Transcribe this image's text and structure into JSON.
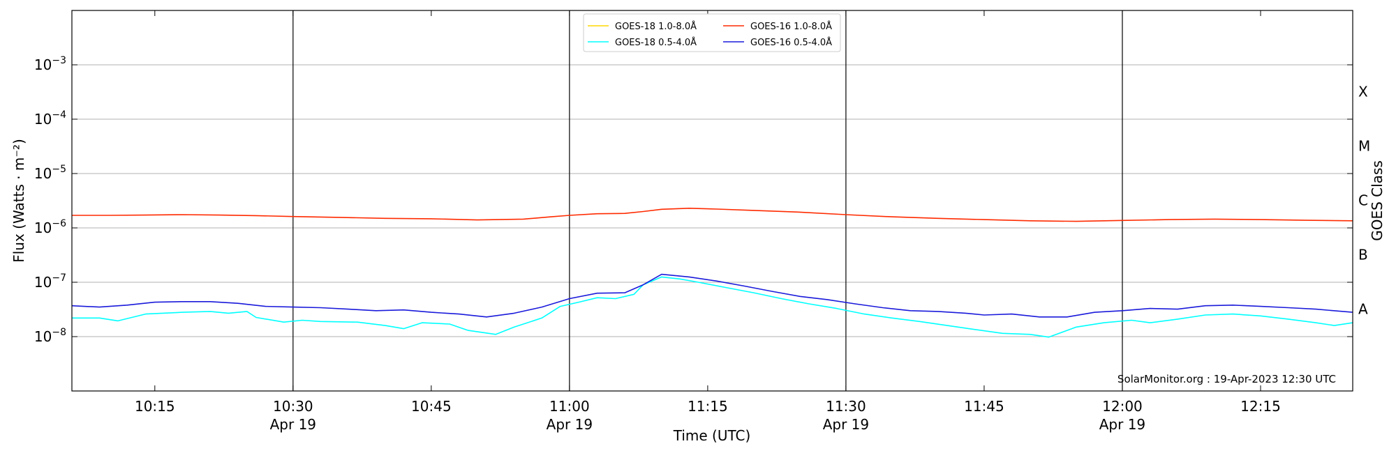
{
  "chart_data": {
    "type": "line",
    "ylabel": "Flux (Watts · m⁻²)",
    "y2label": "GOES Class",
    "xlabel": "Time (UTC)",
    "yscale": "log",
    "xlim": [
      "10:06",
      "12:25"
    ],
    "ylim": [
      1e-09,
      0.01
    ],
    "grid": "horizontal at each decade",
    "legend_location": "top-center",
    "watermark": "SolarMonitor.org : 19-Apr-2023 12:30 UTC",
    "x_ticks": [
      {
        "time": "10:15",
        "label": "10:15",
        "sublabel": ""
      },
      {
        "time": "10:30",
        "label": "10:30",
        "sublabel": "Apr 19"
      },
      {
        "time": "10:45",
        "label": "10:45",
        "sublabel": ""
      },
      {
        "time": "11:00",
        "label": "11:00",
        "sublabel": "Apr 19"
      },
      {
        "time": "11:15",
        "label": "11:15",
        "sublabel": ""
      },
      {
        "time": "11:30",
        "label": "11:30",
        "sublabel": "Apr 19"
      },
      {
        "time": "11:45",
        "label": "11:45",
        "sublabel": ""
      },
      {
        "time": "12:00",
        "label": "12:00",
        "sublabel": "Apr 19"
      },
      {
        "time": "12:15",
        "label": "12:15",
        "sublabel": ""
      }
    ],
    "vlines": [
      "10:30",
      "11:00",
      "11:30",
      "12:00"
    ],
    "y_ticks": [
      {
        "exp": -3,
        "base": "10",
        "sup": "−3"
      },
      {
        "exp": -4,
        "base": "10",
        "sup": "−4"
      },
      {
        "exp": -5,
        "base": "10",
        "sup": "−5"
      },
      {
        "exp": -6,
        "base": "10",
        "sup": "−6"
      },
      {
        "exp": -7,
        "base": "10",
        "sup": "−7"
      },
      {
        "exp": -8,
        "base": "10",
        "sup": "−8"
      }
    ],
    "goes_classes": [
      {
        "label": "X",
        "value": 0.0001
      },
      {
        "label": "M",
        "value": 1e-05
      },
      {
        "label": "C",
        "value": 1e-06
      },
      {
        "label": "B",
        "value": 1e-07
      },
      {
        "label": "A",
        "value": 1e-08
      }
    ],
    "series": [
      {
        "name": "GOES-18 1.0-8.0Å",
        "color": "#ffd700",
        "values": []
      },
      {
        "name": "GOES-18 0.5-4.0Å",
        "color": "#00ffff",
        "points": [
          [
            "10:06",
            2.2e-08
          ],
          [
            "10:09",
            2.2e-08
          ],
          [
            "10:11",
            1.95e-08
          ],
          [
            "10:14",
            2.6e-08
          ],
          [
            "10:18",
            2.8e-08
          ],
          [
            "10:21",
            2.9e-08
          ],
          [
            "10:23",
            2.7e-08
          ],
          [
            "10:25",
            2.9e-08
          ],
          [
            "10:26",
            2.25e-08
          ],
          [
            "10:29",
            1.85e-08
          ],
          [
            "10:31",
            2e-08
          ],
          [
            "10:33",
            1.9e-08
          ],
          [
            "10:37",
            1.85e-08
          ],
          [
            "10:40",
            1.6e-08
          ],
          [
            "10:42",
            1.4e-08
          ],
          [
            "10:44",
            1.8e-08
          ],
          [
            "10:47",
            1.7e-08
          ],
          [
            "10:49",
            1.3e-08
          ],
          [
            "10:52",
            1.1e-08
          ],
          [
            "10:54",
            1.5e-08
          ],
          [
            "10:57",
            2.2e-08
          ],
          [
            "10:59",
            3.6e-08
          ],
          [
            "11:01",
            4.3e-08
          ],
          [
            "11:03",
            5.2e-08
          ],
          [
            "11:05",
            5e-08
          ],
          [
            "11:07",
            6e-08
          ],
          [
            "11:08",
            9e-08
          ],
          [
            "11:10",
            1.25e-07
          ],
          [
            "11:12",
            1.15e-07
          ],
          [
            "11:14",
            1e-07
          ],
          [
            "11:17",
            8e-08
          ],
          [
            "11:20",
            6.4e-08
          ],
          [
            "11:23",
            5e-08
          ],
          [
            "11:26",
            4e-08
          ],
          [
            "11:29",
            3.3e-08
          ],
          [
            "11:32",
            2.6e-08
          ],
          [
            "11:35",
            2.2e-08
          ],
          [
            "11:38",
            1.9e-08
          ],
          [
            "11:41",
            1.6e-08
          ],
          [
            "11:44",
            1.35e-08
          ],
          [
            "11:47",
            1.15e-08
          ],
          [
            "11:50",
            1.1e-08
          ],
          [
            "11:52",
            9.8e-09
          ],
          [
            "11:55",
            1.5e-08
          ],
          [
            "11:58",
            1.8e-08
          ],
          [
            "12:01",
            2e-08
          ],
          [
            "12:03",
            1.8e-08
          ],
          [
            "12:06",
            2.1e-08
          ],
          [
            "12:09",
            2.5e-08
          ],
          [
            "12:12",
            2.6e-08
          ],
          [
            "12:15",
            2.4e-08
          ],
          [
            "12:18",
            2.1e-08
          ],
          [
            "12:21",
            1.8e-08
          ],
          [
            "12:23",
            1.6e-08
          ],
          [
            "12:25",
            1.8e-08
          ]
        ]
      },
      {
        "name": "GOES-16 1.0-8.0Å",
        "color": "#ff2a00",
        "points": [
          [
            "10:06",
            1.7e-06
          ],
          [
            "10:10",
            1.7e-06
          ],
          [
            "10:14",
            1.72e-06
          ],
          [
            "10:18",
            1.75e-06
          ],
          [
            "10:22",
            1.72e-06
          ],
          [
            "10:26",
            1.68e-06
          ],
          [
            "10:30",
            1.62e-06
          ],
          [
            "10:35",
            1.56e-06
          ],
          [
            "10:40",
            1.5e-06
          ],
          [
            "10:45",
            1.47e-06
          ],
          [
            "10:50",
            1.4e-06
          ],
          [
            "10:55",
            1.45e-06
          ],
          [
            "10:58",
            1.6e-06
          ],
          [
            "11:00",
            1.7e-06
          ],
          [
            "11:03",
            1.82e-06
          ],
          [
            "11:06",
            1.85e-06
          ],
          [
            "11:08",
            2e-06
          ],
          [
            "11:10",
            2.2e-06
          ],
          [
            "11:13",
            2.3e-06
          ],
          [
            "11:16",
            2.22e-06
          ],
          [
            "11:20",
            2.1e-06
          ],
          [
            "11:25",
            1.95e-06
          ],
          [
            "11:30",
            1.75e-06
          ],
          [
            "11:35",
            1.6e-06
          ],
          [
            "11:40",
            1.5e-06
          ],
          [
            "11:45",
            1.42e-06
          ],
          [
            "11:50",
            1.35e-06
          ],
          [
            "11:55",
            1.32e-06
          ],
          [
            "12:00",
            1.37e-06
          ],
          [
            "12:05",
            1.42e-06
          ],
          [
            "12:10",
            1.45e-06
          ],
          [
            "12:15",
            1.42e-06
          ],
          [
            "12:20",
            1.38e-06
          ],
          [
            "12:25",
            1.35e-06
          ]
        ]
      },
      {
        "name": "GOES-16 0.5-4.0Å",
        "color": "#1a1adb",
        "points": [
          [
            "10:06",
            3.7e-08
          ],
          [
            "10:09",
            3.5e-08
          ],
          [
            "10:12",
            3.8e-08
          ],
          [
            "10:15",
            4.3e-08
          ],
          [
            "10:18",
            4.4e-08
          ],
          [
            "10:21",
            4.4e-08
          ],
          [
            "10:24",
            4.1e-08
          ],
          [
            "10:27",
            3.6e-08
          ],
          [
            "10:30",
            3.5e-08
          ],
          [
            "10:33",
            3.4e-08
          ],
          [
            "10:36",
            3.2e-08
          ],
          [
            "10:39",
            3e-08
          ],
          [
            "10:42",
            3.1e-08
          ],
          [
            "10:45",
            2.8e-08
          ],
          [
            "10:48",
            2.6e-08
          ],
          [
            "10:51",
            2.3e-08
          ],
          [
            "10:54",
            2.7e-08
          ],
          [
            "10:57",
            3.5e-08
          ],
          [
            "11:00",
            5e-08
          ],
          [
            "11:03",
            6.3e-08
          ],
          [
            "11:06",
            6.4e-08
          ],
          [
            "11:08",
            9e-08
          ],
          [
            "11:10",
            1.4e-07
          ],
          [
            "11:13",
            1.25e-07
          ],
          [
            "11:16",
            1.05e-07
          ],
          [
            "11:19",
            8.5e-08
          ],
          [
            "11:22",
            6.8e-08
          ],
          [
            "11:25",
            5.5e-08
          ],
          [
            "11:28",
            4.8e-08
          ],
          [
            "11:31",
            4e-08
          ],
          [
            "11:34",
            3.4e-08
          ],
          [
            "11:37",
            3e-08
          ],
          [
            "11:40",
            2.9e-08
          ],
          [
            "11:43",
            2.7e-08
          ],
          [
            "11:45",
            2.5e-08
          ],
          [
            "11:48",
            2.6e-08
          ],
          [
            "11:51",
            2.3e-08
          ],
          [
            "11:54",
            2.3e-08
          ],
          [
            "11:57",
            2.8e-08
          ],
          [
            "12:00",
            3e-08
          ],
          [
            "12:03",
            3.3e-08
          ],
          [
            "12:06",
            3.2e-08
          ],
          [
            "12:09",
            3.7e-08
          ],
          [
            "12:12",
            3.8e-08
          ],
          [
            "12:15",
            3.6e-08
          ],
          [
            "12:18",
            3.4e-08
          ],
          [
            "12:21",
            3.2e-08
          ],
          [
            "12:25",
            2.8e-08
          ]
        ]
      }
    ]
  }
}
